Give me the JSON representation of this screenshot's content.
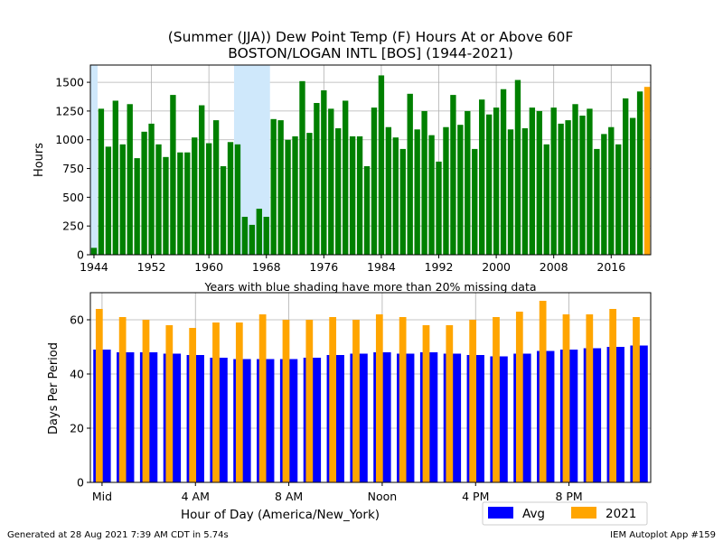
{
  "chart_data": [
    {
      "type": "bar",
      "title": "(Summer (JJA)) Dew Point Temp (F) Hours At or Above 60F\nBOSTON/LOGAN INTL [BOS] (1944-2021)",
      "title_lines": [
        "(Summer (JJA)) Dew Point Temp (F) Hours At or Above 60F",
        "BOSTON/LOGAN INTL [BOS] (1944-2021)"
      ],
      "xlabel": "Years with blue shading have more than 20% missing data",
      "ylabel": "Hours",
      "xlim": [
        1943.5,
        2021.5
      ],
      "ylim": [
        0,
        1650
      ],
      "xticks": [
        1944,
        1952,
        1960,
        1968,
        1976,
        1984,
        1992,
        2000,
        2008,
        2016
      ],
      "yticks": [
        0,
        250,
        500,
        750,
        1000,
        1250,
        1500
      ],
      "grid": true,
      "bar_color": "#008000",
      "highlight_color": "#ffa500",
      "shading_color": "#cfe8fb",
      "missing_data_years": [
        1944,
        1964,
        1965,
        1966,
        1967,
        1968
      ],
      "highlight_year": 2021,
      "x": [
        1944,
        1945,
        1946,
        1947,
        1948,
        1949,
        1950,
        1951,
        1952,
        1953,
        1954,
        1955,
        1956,
        1957,
        1958,
        1959,
        1960,
        1961,
        1962,
        1963,
        1964,
        1965,
        1966,
        1967,
        1968,
        1969,
        1970,
        1971,
        1972,
        1973,
        1974,
        1975,
        1976,
        1977,
        1978,
        1979,
        1980,
        1981,
        1982,
        1983,
        1984,
        1985,
        1986,
        1987,
        1988,
        1989,
        1990,
        1991,
        1992,
        1993,
        1994,
        1995,
        1996,
        1997,
        1998,
        1999,
        2000,
        2001,
        2002,
        2003,
        2004,
        2005,
        2006,
        2007,
        2008,
        2009,
        2010,
        2011,
        2012,
        2013,
        2014,
        2015,
        2016,
        2017,
        2018,
        2019,
        2020,
        2021
      ],
      "values": [
        60,
        1270,
        940,
        1340,
        960,
        1310,
        840,
        1070,
        1140,
        960,
        850,
        1390,
        890,
        890,
        1020,
        1300,
        970,
        1170,
        770,
        980,
        960,
        330,
        260,
        400,
        330,
        1180,
        1170,
        1000,
        1030,
        1510,
        1060,
        1320,
        1430,
        1270,
        1100,
        1340,
        1030,
        1030,
        770,
        1280,
        1560,
        1110,
        1020,
        920,
        1400,
        1090,
        1250,
        1040,
        810,
        1110,
        1390,
        1130,
        1250,
        920,
        1350,
        1220,
        1280,
        1440,
        1090,
        1520,
        1100,
        1280,
        1250,
        960,
        1280,
        1140,
        1170,
        1310,
        1210,
        1270,
        920,
        1050,
        1110,
        960,
        1360,
        1190,
        1420,
        1460
      ]
    },
    {
      "type": "bar",
      "xlabel": "Hour of Day (America/New_York)",
      "ylabel": "Days Per Period",
      "ylim": [
        0,
        70
      ],
      "yticks": [
        0,
        20,
        40,
        60
      ],
      "grid": true,
      "xtick_hours": [
        0,
        4,
        8,
        12,
        16,
        20
      ],
      "xtick_labels": [
        "Mid",
        "4 AM",
        "8 AM",
        "Noon",
        "4 PM",
        "8 PM"
      ],
      "legend": {
        "location": "lower-right",
        "entries": [
          "Avg",
          "2021"
        ]
      },
      "series": [
        {
          "name": "Avg",
          "color": "#0000ff",
          "values": [
            49,
            48,
            48,
            47.5,
            47,
            46,
            45.5,
            45.5,
            45.5,
            46,
            47,
            47.5,
            48,
            47.5,
            48,
            47.5,
            47,
            46.5,
            47.5,
            48.5,
            49,
            49.5,
            50,
            50.5
          ]
        },
        {
          "name": "2021",
          "color": "#ffa500",
          "values": [
            64,
            61,
            60,
            58,
            57,
            59,
            59,
            62,
            60,
            60,
            61,
            60,
            62,
            61,
            58,
            58,
            60,
            61,
            63,
            67,
            62,
            62,
            64,
            61
          ]
        }
      ]
    }
  ],
  "footer": {
    "generated": "Generated at 28 Aug 2021 7:39 AM CDT in 5.74s",
    "app": "IEM Autoplot App #159"
  }
}
